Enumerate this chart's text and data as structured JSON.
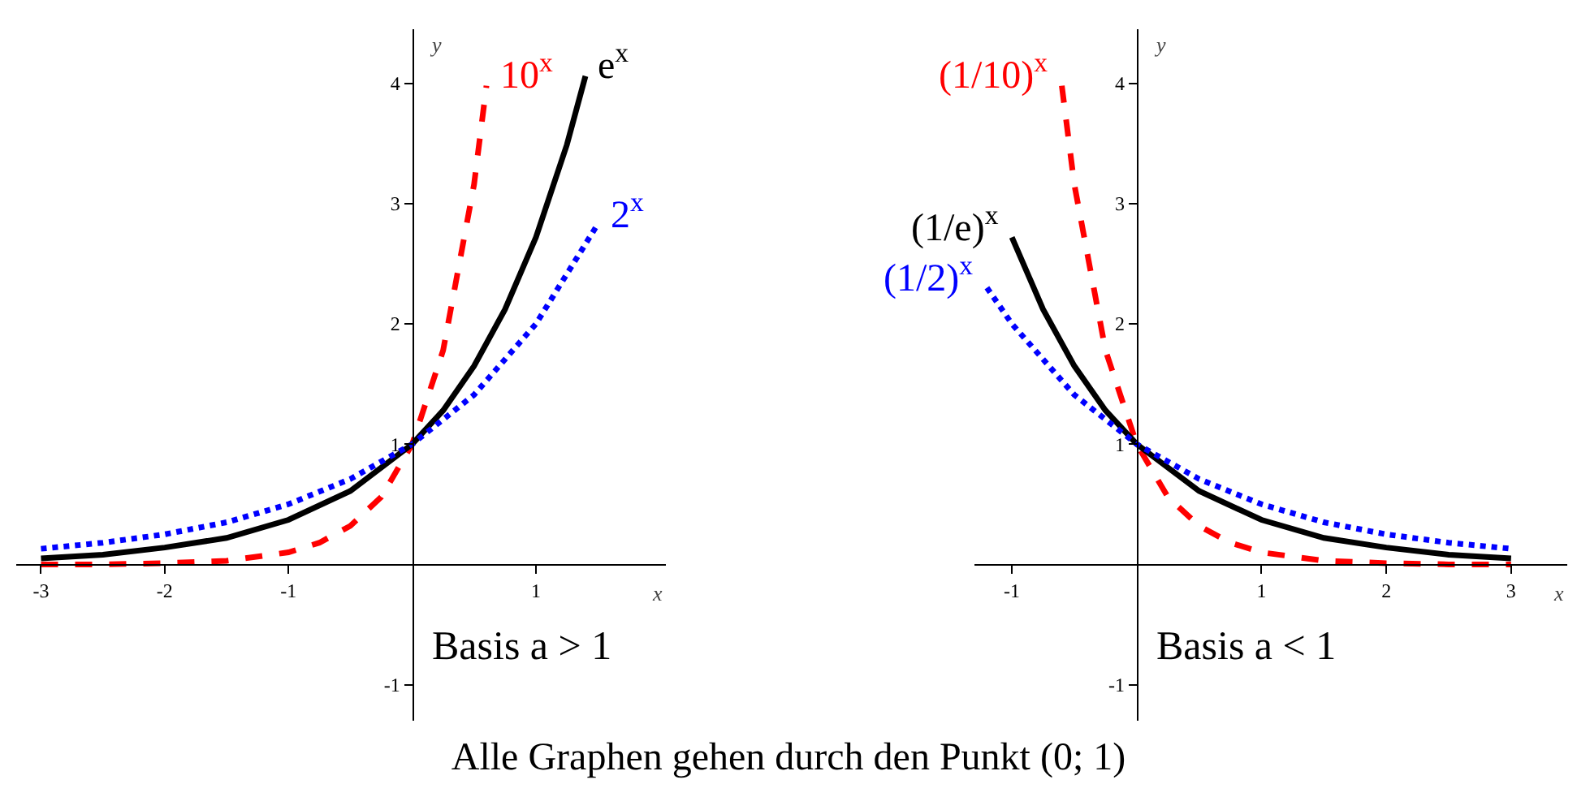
{
  "chart_data": [
    {
      "type": "line",
      "xlabel": "x",
      "ylabel": "y",
      "xlim": [
        -3.2,
        2.05
      ],
      "ylim": [
        -1.3,
        4.45
      ],
      "xticks": [
        -3,
        -2,
        -1,
        1
      ],
      "yticks": [
        -1,
        1,
        2,
        3,
        4
      ],
      "grid": false,
      "legend": false,
      "series": [
        {
          "name": "10$^{x}$",
          "color": "#ff0000",
          "line_style": "dashed",
          "x": [
            -3,
            -2.5,
            -2,
            -1.5,
            -1,
            -0.75,
            -0.5,
            -0.25,
            0,
            0.25,
            0.5,
            0.6
          ],
          "values": [
            0,
            0,
            0.01,
            0.03,
            0.1,
            0.18,
            0.32,
            0.56,
            1,
            1.78,
            3.16,
            3.98
          ]
        },
        {
          "name": "e$^{x}$",
          "color": "#000000",
          "line_style": "solid",
          "x": [
            -3,
            -2.5,
            -2,
            -1.5,
            -1,
            -0.5,
            0,
            0.25,
            0.5,
            0.75,
            1,
            1.25,
            1.4
          ],
          "values": [
            0.05,
            0.08,
            0.14,
            0.22,
            0.37,
            0.61,
            1,
            1.28,
            1.65,
            2.12,
            2.72,
            3.49,
            4.06
          ]
        },
        {
          "name": "2$^{x}$",
          "color": "#0000ff",
          "line_style": "dotted",
          "x": [
            -3,
            -2.5,
            -2,
            -1.5,
            -1,
            -0.5,
            0,
            0.5,
            1,
            1.5
          ],
          "values": [
            0.13,
            0.18,
            0.25,
            0.35,
            0.5,
            0.71,
            1,
            1.41,
            2,
            2.83
          ]
        }
      ],
      "annotations": [
        "Basis a > 1"
      ]
    },
    {
      "type": "line",
      "xlabel": "x",
      "ylabel": "y",
      "xlim": [
        -1.3,
        3.45
      ],
      "ylim": [
        -1.3,
        4.45
      ],
      "xticks": [
        -1,
        1,
        2,
        3
      ],
      "yticks": [
        -1,
        1,
        2,
        3,
        4
      ],
      "grid": false,
      "legend": false,
      "series": [
        {
          "name": "(1/10)$^{x}$",
          "color": "#ff0000",
          "line_style": "dashed",
          "x": [
            -0.6,
            -0.5,
            -0.25,
            0,
            0.25,
            0.5,
            0.75,
            1,
            1.5,
            2,
            2.5,
            3
          ],
          "values": [
            3.98,
            3.16,
            1.78,
            1,
            0.56,
            0.32,
            0.18,
            0.1,
            0.03,
            0.01,
            0,
            0
          ]
        },
        {
          "name": "(1/e)$^{x}$",
          "color": "#000000",
          "line_style": "solid",
          "x": [
            -1,
            -0.75,
            -0.5,
            -0.25,
            0,
            0.5,
            1,
            1.5,
            2,
            2.5,
            3
          ],
          "values": [
            2.72,
            2.12,
            1.65,
            1.28,
            1,
            0.61,
            0.37,
            0.22,
            0.14,
            0.08,
            0.05
          ]
        },
        {
          "name": "(1/2)$^{x}$",
          "color": "#0000ff",
          "line_style": "dotted",
          "x": [
            -1.2,
            -1,
            -0.5,
            0,
            0.5,
            1,
            1.5,
            2,
            2.5,
            3
          ],
          "values": [
            2.3,
            2,
            1.41,
            1,
            0.71,
            0.5,
            0.35,
            0.25,
            0.18,
            0.13
          ]
        }
      ],
      "annotations": [
        "Basis a < 1",
        "Alle Graphen gehen durch den Punkt (0; 1)"
      ]
    }
  ]
}
